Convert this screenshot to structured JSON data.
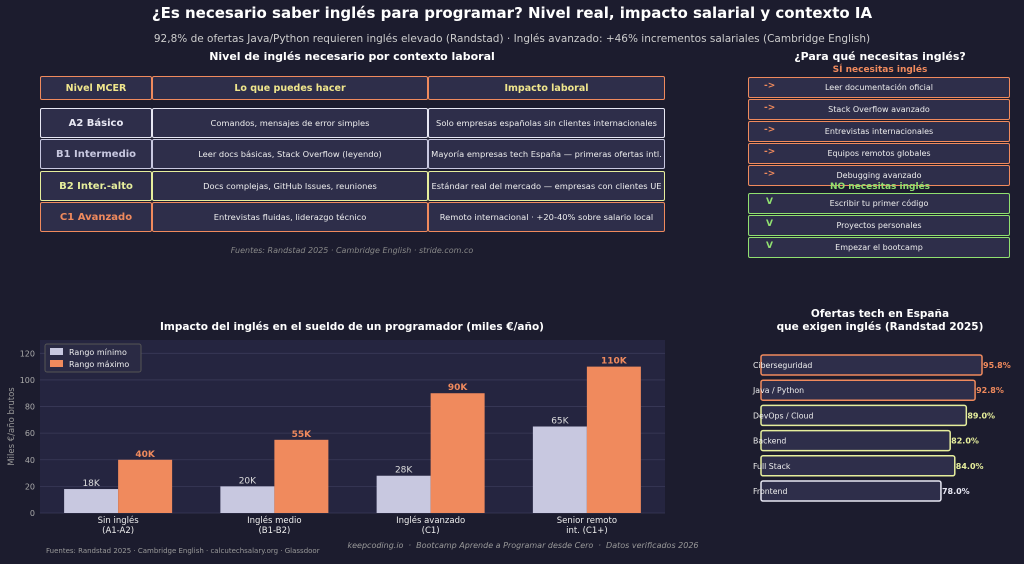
{
  "header": {
    "title": "¿Es necesario saber inglés para programar? Nivel real, impacto salarial y contexto IA",
    "subtitle": "92,8% de ofertas Java/Python requieren inglés elevado (Randstad) · Inglés avanzado: +46% incrementos salariales (Cambridge English)"
  },
  "table": {
    "title": "Nivel de inglés necesario por contexto laboral",
    "columns": [
      "Nivel MCER",
      "Lo que puedes hacer",
      "Impacto laboral"
    ],
    "rows": [
      [
        "A2 Básico",
        "Comandos, mensajes de error simples",
        "Solo empresas españolas sin clientes internacionales"
      ],
      [
        "B1 Intermedio",
        "Leer docs básicas, Stack Overflow (leyendo)",
        "Mayoría empresas tech España — primeras ofertas intl."
      ],
      [
        "B2 Inter.-alto",
        "Docs complejas, GitHub Issues, reuniones",
        "Estándar real del mercado — empresas con clientes UE"
      ],
      [
        "C1 Avanzado",
        "Entrevistas fluidas, liderazgo técnico",
        "Remoto internacional · +20-40% sobre salario local"
      ]
    ],
    "row_colors": [
      "#e8e8f4",
      "#c8c8e0",
      "#e6ee9c",
      "#f08a5d"
    ],
    "source": "Fuentes: Randstad 2025 · Cambridge English · stride.com.co"
  },
  "needs": {
    "title": "¿Para qué necesitas inglés?",
    "yes_title": "SÍ necesitas inglés",
    "yes_marker": "->",
    "yes_items": [
      "Leer documentación oficial",
      "Stack Overflow avanzado",
      "Entrevistas internacionales",
      "Equipos remotos globales",
      "Debugging avanzado"
    ],
    "no_title": "NO necesitas inglés",
    "no_marker": "V",
    "no_items": [
      "Escribir tu primer código",
      "Proyectos personales",
      "Empezar el bootcamp"
    ]
  },
  "chart_data": [
    {
      "type": "bar",
      "title": "Impacto del inglés en el sueldo de un programador (miles €/año)",
      "ylabel": "Miles €/año brutos",
      "categories": [
        "Sin inglés\n(A1-A2)",
        "Inglés medio\n(B1-B2)",
        "Inglés avanzado\n(C1)",
        "Senior remoto\nint. (C1+)"
      ],
      "series": [
        {
          "name": "Rango mínimo",
          "color": "#c8c8e0",
          "values": [
            18,
            20,
            28,
            65
          ],
          "value_labels": [
            "18K",
            "20K",
            "28K",
            "65K"
          ]
        },
        {
          "name": "Rango máximo",
          "color": "#f08a5d",
          "values": [
            40,
            55,
            90,
            110
          ],
          "value_labels": [
            "40K",
            "55K",
            "90K",
            "110K"
          ]
        }
      ],
      "ylim": [
        0,
        130
      ],
      "yticks": [
        0,
        20,
        40,
        60,
        80,
        100,
        120
      ],
      "grid": true,
      "legend": "upper left",
      "source": "Fuentes: Randstad 2025 · Cambridge English · calcutechsalary.org · Glassdoor"
    },
    {
      "type": "barh",
      "title": "Ofertas tech en España\nque exigen inglés (Randstad 2025)",
      "categories": [
        "Ciberseguridad",
        "Java / Python",
        "DevOps / Cloud",
        "Backend",
        "Full Stack",
        "Frontend"
      ],
      "values": [
        95.8,
        92.8,
        89.0,
        82.0,
        84.0,
        78.0
      ],
      "value_labels": [
        "95.8%",
        "92.8%",
        "89.0%",
        "82.0%",
        "84.0%",
        "78.0%"
      ],
      "colors": [
        "#f08a5d",
        "#f08a5d",
        "#e6ee9c",
        "#e6ee9c",
        "#e6ee9c",
        "#e8e8f4"
      ],
      "xlim": [
        0,
        100
      ]
    }
  ],
  "footer": {
    "credit": "keepcoding.io  ·  Bootcamp Aprende a Programar desde Cero  ·  Datos verificados 2026"
  }
}
